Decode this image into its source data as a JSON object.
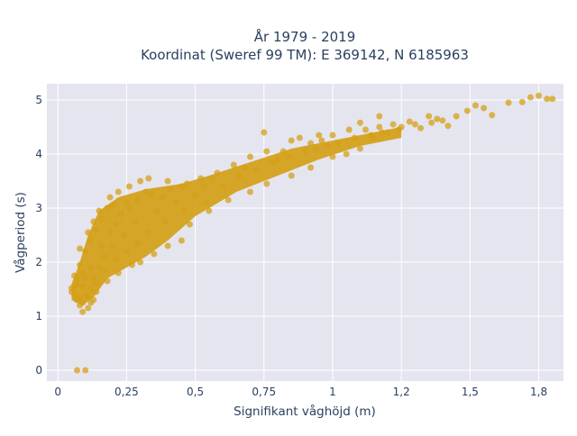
{
  "chart_data": {
    "type": "scatter",
    "title": [
      "År 1979 - 2019",
      "Koordinat (Sweref 99 TM): E 369142, N 6185963"
    ],
    "xlabel": "Signifikant våghöjd (m)",
    "ylabel": "Vågperiod (s)",
    "xlim": [
      -0.04,
      1.84
    ],
    "ylim": [
      -0.2,
      5.3
    ],
    "xticks": [
      0,
      0.25,
      0.5,
      0.75,
      1,
      1.25,
      1.5,
      1.75
    ],
    "xtick_labels": [
      "0",
      "0,25",
      "0,5",
      "0,75",
      "1",
      "1,2",
      "1,5",
      "1,8"
    ],
    "yticks": [
      0,
      1,
      2,
      3,
      4,
      5
    ],
    "ytick_labels": [
      "0",
      "1",
      "2",
      "3",
      "4",
      "5"
    ],
    "grid": true,
    "background_color": "#e5e5ef",
    "marker_color": "#d4a017",
    "points": [
      [
        0.07,
        0.0
      ],
      [
        0.1,
        0.0
      ],
      [
        0.05,
        1.45
      ],
      [
        0.05,
        1.52
      ],
      [
        0.06,
        1.4
      ],
      [
        0.07,
        1.3
      ],
      [
        0.08,
        1.2
      ],
      [
        0.09,
        1.08
      ],
      [
        0.07,
        1.6
      ],
      [
        0.06,
        1.75
      ],
      [
        0.08,
        1.95
      ],
      [
        0.09,
        1.8
      ],
      [
        0.1,
        2.2
      ],
      [
        0.08,
        2.25
      ],
      [
        0.12,
        2.4
      ],
      [
        0.14,
        2.6
      ],
      [
        0.16,
        2.8
      ],
      [
        0.18,
        3.0
      ],
      [
        0.19,
        3.2
      ],
      [
        0.2,
        3.05
      ],
      [
        0.22,
        3.3
      ],
      [
        0.26,
        3.4
      ],
      [
        0.3,
        3.5
      ],
      [
        0.33,
        3.55
      ],
      [
        0.4,
        3.5
      ],
      [
        0.45,
        3.4
      ],
      [
        0.52,
        3.55
      ],
      [
        0.58,
        3.65
      ],
      [
        0.64,
        3.8
      ],
      [
        0.7,
        3.95
      ],
      [
        0.76,
        4.05
      ],
      [
        0.82,
        4.05
      ],
      [
        0.85,
        4.25
      ],
      [
        0.92,
        4.2
      ],
      [
        0.96,
        4.25
      ],
      [
        1.0,
        4.35
      ],
      [
        1.06,
        4.45
      ],
      [
        1.12,
        4.45
      ],
      [
        1.17,
        4.5
      ],
      [
        1.22,
        4.55
      ],
      [
        1.28,
        4.6
      ],
      [
        1.35,
        4.7
      ],
      [
        1.4,
        4.62
      ],
      [
        1.45,
        4.7
      ],
      [
        1.49,
        4.8
      ],
      [
        1.52,
        4.9
      ],
      [
        1.55,
        4.85
      ],
      [
        1.58,
        4.72
      ],
      [
        1.64,
        4.95
      ],
      [
        1.69,
        4.96
      ],
      [
        1.72,
        5.05
      ],
      [
        1.75,
        5.08
      ],
      [
        1.78,
        5.02
      ],
      [
        1.8,
        5.02
      ],
      [
        1.17,
        4.7
      ],
      [
        1.15,
        4.3
      ],
      [
        1.05,
        4.0
      ],
      [
        0.92,
        3.75
      ],
      [
        0.85,
        3.6
      ],
      [
        0.76,
        3.45
      ],
      [
        0.7,
        3.3
      ],
      [
        0.62,
        3.15
      ],
      [
        0.55,
        2.95
      ],
      [
        0.48,
        2.7
      ],
      [
        0.45,
        2.4
      ],
      [
        0.4,
        2.3
      ],
      [
        0.35,
        2.15
      ],
      [
        0.3,
        2.0
      ],
      [
        0.27,
        1.95
      ],
      [
        0.22,
        1.8
      ],
      [
        0.18,
        1.65
      ],
      [
        0.14,
        1.45
      ],
      [
        0.12,
        1.25
      ],
      [
        0.11,
        1.35
      ],
      [
        0.75,
        4.4
      ],
      [
        0.88,
        4.3
      ],
      [
        0.95,
        4.35
      ],
      [
        1.1,
        4.58
      ],
      [
        1.2,
        4.4
      ],
      [
        1.25,
        4.5
      ],
      [
        1.3,
        4.55
      ],
      [
        1.38,
        4.65
      ],
      [
        1.0,
        3.95
      ],
      [
        1.1,
        4.1
      ],
      [
        0.6,
        3.4
      ],
      [
        0.5,
        3.25
      ],
      [
        0.43,
        3.1
      ],
      [
        0.36,
        2.95
      ],
      [
        0.28,
        2.75
      ],
      [
        0.24,
        2.5
      ],
      [
        0.2,
        2.3
      ],
      [
        0.17,
        2.1
      ],
      [
        0.15,
        1.9
      ],
      [
        0.13,
        1.7
      ],
      [
        0.25,
        3.1
      ],
      [
        0.32,
        3.3
      ],
      [
        0.38,
        3.2
      ],
      [
        0.53,
        3.4
      ],
      [
        0.66,
        3.6
      ],
      [
        0.72,
        3.7
      ],
      [
        0.8,
        3.9
      ],
      [
        0.9,
        4.05
      ],
      [
        0.98,
        4.15
      ],
      [
        1.08,
        4.3
      ],
      [
        1.18,
        4.4
      ],
      [
        1.32,
        4.48
      ],
      [
        1.42,
        4.52
      ],
      [
        0.15,
        2.95
      ],
      [
        0.13,
        2.75
      ],
      [
        0.11,
        2.55
      ],
      [
        0.09,
        1.55
      ],
      [
        0.1,
        1.7
      ],
      [
        0.12,
        1.9
      ],
      [
        0.16,
        2.3
      ],
      [
        0.19,
        2.55
      ],
      [
        0.21,
        2.7
      ],
      [
        0.23,
        2.9
      ],
      [
        0.26,
        3.0
      ],
      [
        0.29,
        3.15
      ],
      [
        0.34,
        3.25
      ],
      [
        0.41,
        3.35
      ],
      [
        0.47,
        3.45
      ],
      [
        0.56,
        3.55
      ],
      [
        0.68,
        3.75
      ],
      [
        0.78,
        3.85
      ],
      [
        0.84,
        3.95
      ],
      [
        0.94,
        4.1
      ],
      [
        1.02,
        4.2
      ],
      [
        1.14,
        4.35
      ],
      [
        1.24,
        4.45
      ],
      [
        1.36,
        4.58
      ],
      [
        0.54,
        3.1
      ],
      [
        0.46,
        2.95
      ],
      [
        0.39,
        2.75
      ],
      [
        0.33,
        2.55
      ],
      [
        0.29,
        2.35
      ],
      [
        0.25,
        2.2
      ],
      [
        0.21,
        2.05
      ],
      [
        0.17,
        1.85
      ],
      [
        0.14,
        1.6
      ],
      [
        0.12,
        1.5
      ],
      [
        0.1,
        1.4
      ],
      [
        0.08,
        1.35
      ],
      [
        0.06,
        1.55
      ],
      [
        0.07,
        1.7
      ],
      [
        0.09,
        1.25
      ],
      [
        0.11,
        1.15
      ],
      [
        0.13,
        1.3
      ]
    ]
  }
}
